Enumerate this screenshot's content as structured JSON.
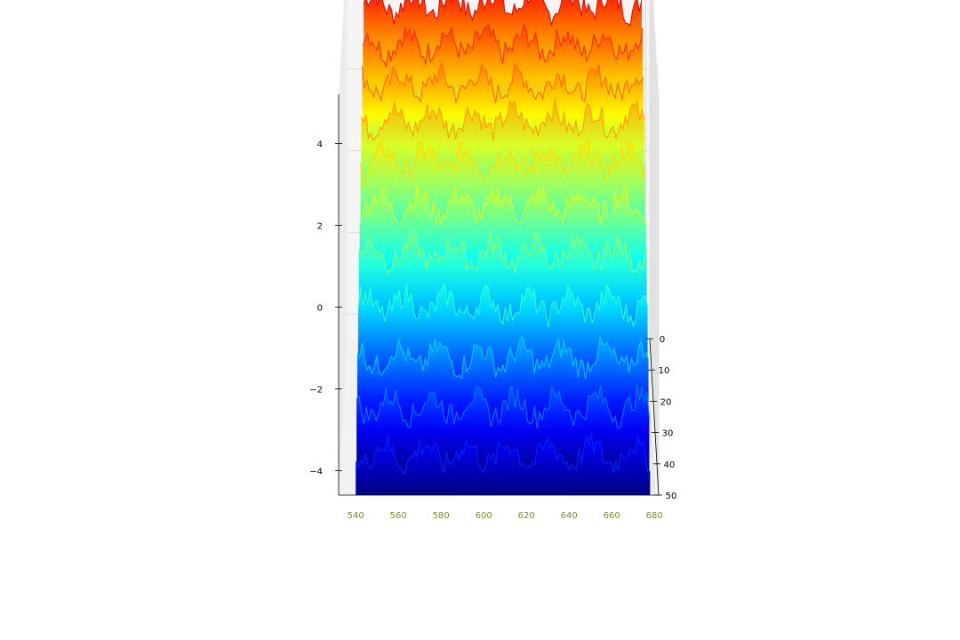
{
  "chart_data": {
    "type": "surface3d",
    "title": "",
    "xlabel": "",
    "ylabel": "",
    "zlabel": "",
    "colormap": "jet",
    "view": "3D surface viewed from above at an angle",
    "grid": true,
    "pane_color": "#f5f5f5",
    "x_ticks": [
      "540",
      "560",
      "580",
      "600",
      "620",
      "640",
      "660",
      "680"
    ],
    "xlim": [
      532,
      682
    ],
    "y_ticks": [
      "0",
      "10",
      "20",
      "30",
      "40",
      "50"
    ],
    "ylim": [
      0,
      50
    ],
    "z_ticks": [
      "−4",
      "−2",
      "0",
      "2",
      "4"
    ],
    "zlim": [
      -4.6,
      5.2
    ],
    "series": [
      {
        "y": 0,
        "baseline": 3.6
      },
      {
        "y": 5,
        "baseline": 3.0
      },
      {
        "y": 10,
        "baseline": 2.4
      },
      {
        "y": 15,
        "baseline": 1.9
      },
      {
        "y": 20,
        "baseline": 1.3
      },
      {
        "y": 25,
        "baseline": 0.6
      },
      {
        "y": 30,
        "baseline": -0.2
      },
      {
        "y": 35,
        "baseline": -1.1
      },
      {
        "y": 40,
        "baseline": -2.0
      },
      {
        "y": 45,
        "baseline": -2.8
      },
      {
        "y": 50,
        "baseline": -3.6
      }
    ]
  }
}
